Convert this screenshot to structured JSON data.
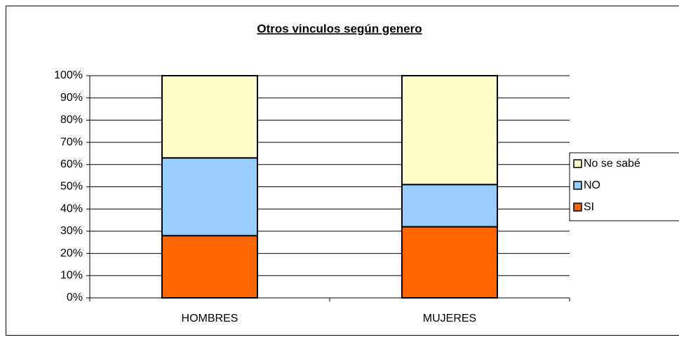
{
  "chart_data": {
    "type": "stacked_bar",
    "title": "Otros vinculos según genero",
    "categories": [
      "HOMBRES",
      "MUJERES"
    ],
    "series": [
      {
        "name": "SI",
        "color": "#ff6600",
        "values": [
          28,
          32
        ]
      },
      {
        "name": "NO",
        "color": "#99ccff",
        "values": [
          35,
          19
        ]
      },
      {
        "name": "No se sabé",
        "color": "#ffffcc",
        "values": [
          37,
          49
        ]
      }
    ],
    "ylim": [
      0,
      100
    ],
    "yticks": [
      {
        "value": 0,
        "label": "0%"
      },
      {
        "value": 10,
        "label": "10%"
      },
      {
        "value": 20,
        "label": "20%"
      },
      {
        "value": 30,
        "label": "30%"
      },
      {
        "value": 40,
        "label": "40%"
      },
      {
        "value": 50,
        "label": "50%"
      },
      {
        "value": 60,
        "label": "60%"
      },
      {
        "value": 70,
        "label": "70%"
      },
      {
        "value": 80,
        "label": "80%"
      },
      {
        "value": 90,
        "label": "90%"
      },
      {
        "value": 100,
        "label": "100%"
      }
    ],
    "grid": true,
    "legend": "right"
  }
}
